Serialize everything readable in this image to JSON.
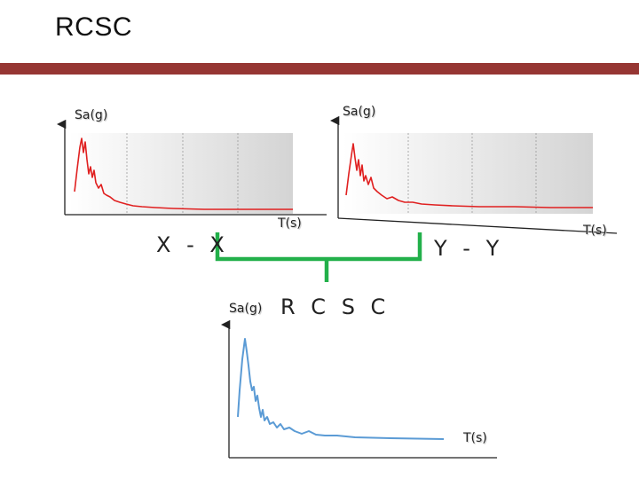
{
  "slide": {
    "title": "RCSC",
    "accent_color": "#963633"
  },
  "panels": {
    "x": {
      "axis_y_label": "Sa(g)",
      "axis_x_label": "T(s)",
      "direction_label": "X - X",
      "line_color": "#e02020"
    },
    "y": {
      "axis_y_label": "Sa(g)",
      "axis_x_label": "T(s)",
      "direction_label": "Y - Y",
      "line_color": "#e02020"
    },
    "combined": {
      "axis_y_label": "Sa(g)",
      "axis_x_label": "T(s)",
      "label": "R C S C",
      "line_color": "#5b9bd5"
    }
  },
  "connector": {
    "color": "#22b04a"
  }
}
